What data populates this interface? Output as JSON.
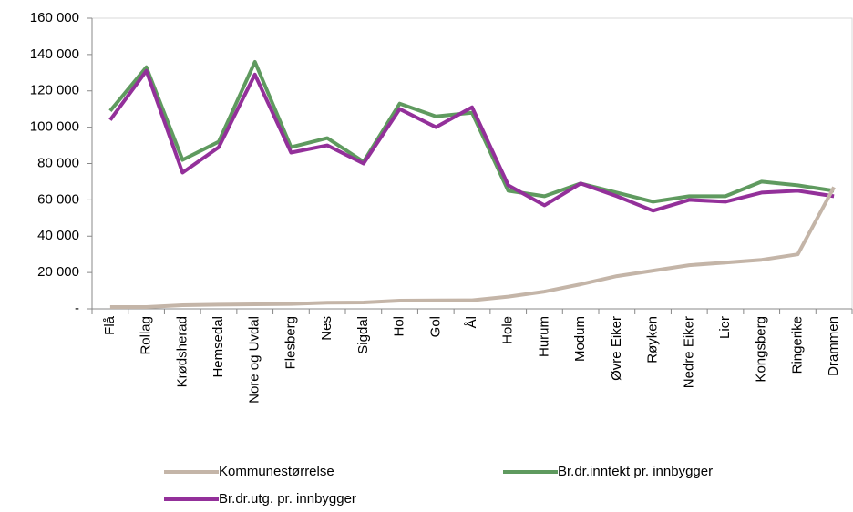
{
  "chart_data": {
    "type": "line",
    "categories": [
      "Flå",
      "Rollag",
      "Krødsherad",
      "Hemsedal",
      "Nore og Uvdal",
      "Flesberg",
      "Nes",
      "Sigdal",
      "Hol",
      "Gol",
      "Ål",
      "Hole",
      "Hurum",
      "Modum",
      "Øvre Eiker",
      "Røyken",
      "Nedre Eiker",
      "Lier",
      "Kongsberg",
      "Ringerike",
      "Drammen"
    ],
    "series": [
      {
        "name": "Kommunestørrelse",
        "color": "#c4b5a8",
        "values": [
          1000,
          1000,
          2000,
          2300,
          2500,
          2700,
          3400,
          3500,
          4500,
          4600,
          4700,
          6700,
          9500,
          13500,
          18000,
          21000,
          24000,
          25500,
          27000,
          30000,
          67000
        ]
      },
      {
        "name": "Br.dr.inntekt pr. innbygger",
        "color": "#5f9a5f",
        "values": [
          109000,
          133000,
          82000,
          92000,
          136000,
          89000,
          94000,
          81000,
          113000,
          106000,
          108000,
          65000,
          62000,
          69000,
          64000,
          59000,
          62000,
          62000,
          70000,
          68000,
          65000
        ]
      },
      {
        "name": "Br.dr.utg. pr. innbygger",
        "color": "#93309a",
        "values": [
          104000,
          131000,
          75000,
          89000,
          129000,
          86000,
          90000,
          80000,
          110000,
          100000,
          111000,
          68000,
          57000,
          69000,
          62000,
          54000,
          60000,
          59000,
          64000,
          65000,
          62000
        ]
      }
    ],
    "ylim": [
      0,
      160000
    ],
    "yticks": [
      {
        "value": 0,
        "label": "-"
      },
      {
        "value": 20000,
        "label": "20 000"
      },
      {
        "value": 40000,
        "label": "40 000"
      },
      {
        "value": 60000,
        "label": "60 000"
      },
      {
        "value": 80000,
        "label": "80 000"
      },
      {
        "value": 100000,
        "label": "100 000"
      },
      {
        "value": 120000,
        "label": "120 000"
      },
      {
        "value": 140000,
        "label": "140 000"
      },
      {
        "value": 160000,
        "label": "160 000"
      }
    ],
    "grid": false,
    "legend": "bottom"
  }
}
